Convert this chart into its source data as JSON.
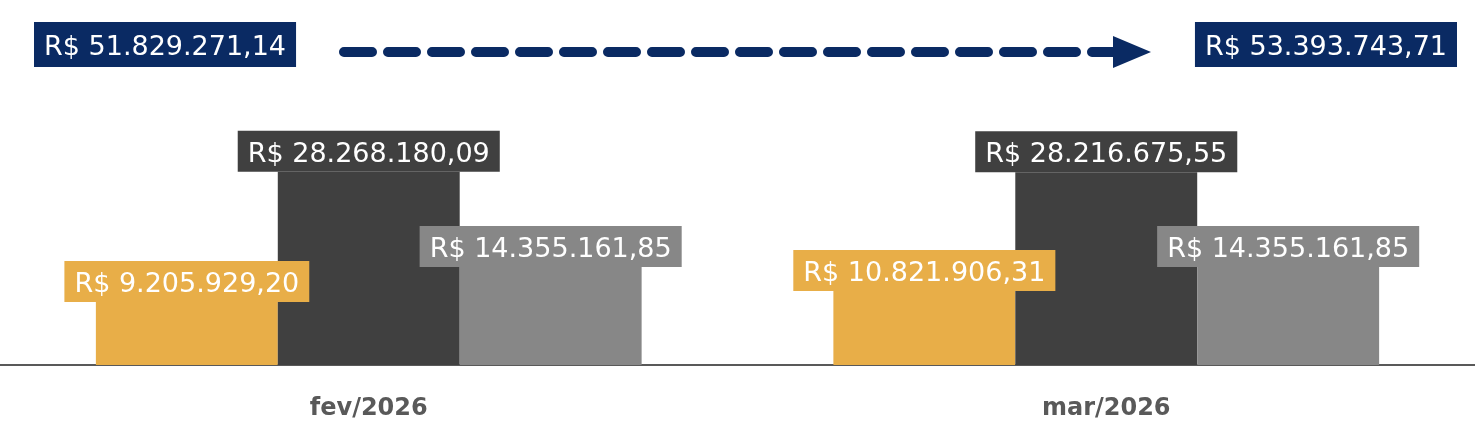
{
  "chart_data": {
    "type": "bar",
    "categories": [
      "fev/2026",
      "mar/2026"
    ],
    "series": [
      {
        "color": "#e8ae48",
        "values": [
          9205929.2,
          10821906.31
        ],
        "value_labels": [
          "R$ 9.205.929,20",
          "R$ 10.821.906,31"
        ]
      },
      {
        "color": "#404040",
        "values": [
          28268180.09,
          28216675.55
        ],
        "value_labels": [
          "R$ 28.268.180,09",
          "R$ 28.216.675,55"
        ]
      },
      {
        "color": "#878787",
        "values": [
          14355161.85,
          14355161.85
        ],
        "value_labels": [
          "R$ 14.355.161,85",
          "R$ 14.355.161,85"
        ]
      }
    ],
    "annotations": [
      "R$ 51.829.271,14",
      "R$ 53.393.743,71"
    ]
  }
}
